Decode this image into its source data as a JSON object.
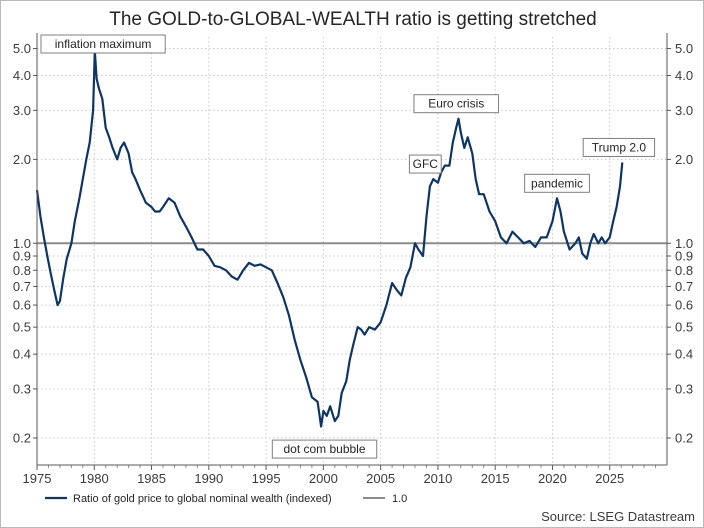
{
  "chart_data": {
    "type": "line",
    "title": "The GOLD-to-GLOBAL-WEALTH ratio is getting stretched",
    "xlabel": "",
    "ylabel": "",
    "y_scale": "log",
    "xlim": [
      1975,
      2030
    ],
    "ylim": [
      0.16,
      5.5
    ],
    "grid": true,
    "x_ticks": [
      1975,
      1980,
      1985,
      1990,
      1995,
      2000,
      2005,
      2010,
      2015,
      2020,
      2025
    ],
    "x_tick_labels": [
      "1975",
      "1980",
      "1985",
      "1990",
      "1995",
      "2000",
      "2005",
      "2010",
      "2015",
      "2020",
      "2025"
    ],
    "y_ticks": [
      0.2,
      0.3,
      0.4,
      0.5,
      0.6,
      0.7,
      0.8,
      0.9,
      1.0,
      2.0,
      3.0,
      4.0,
      5.0
    ],
    "y_tick_labels": [
      "0.2",
      "0.3",
      "0.4",
      "0.5",
      "0.6",
      "0.7",
      "0.8",
      "0.9",
      "1.0",
      "2.0",
      "3.0",
      "4.0",
      "5.0"
    ],
    "legend_position": "bottom-left",
    "source": "Source: LSEG Datastream",
    "series": [
      {
        "name": "Ratio of gold price to global nominal wealth (indexed)",
        "color": "#0d3566",
        "x": [
          1975.0,
          1975.3,
          1975.6,
          1975.9,
          1976.2,
          1976.5,
          1976.8,
          1977.0,
          1977.3,
          1977.6,
          1978.0,
          1978.3,
          1978.7,
          1979.0,
          1979.3,
          1979.6,
          1979.9,
          1980.05,
          1980.2,
          1980.4,
          1980.7,
          1981.0,
          1981.3,
          1981.6,
          1982.0,
          1982.3,
          1982.6,
          1983.0,
          1983.3,
          1983.6,
          1984.0,
          1984.5,
          1985.0,
          1985.3,
          1985.7,
          1986.0,
          1986.5,
          1987.0,
          1987.5,
          1988.0,
          1988.5,
          1989.0,
          1989.5,
          1990.0,
          1990.5,
          1991.0,
          1991.5,
          1992.0,
          1992.5,
          1993.0,
          1993.5,
          1994.0,
          1994.5,
          1995.0,
          1995.5,
          1996.0,
          1996.5,
          1997.0,
          1997.5,
          1998.0,
          1998.5,
          1999.0,
          1999.5,
          1999.8,
          2000.0,
          2000.3,
          2000.6,
          2001.0,
          2001.3,
          2001.6,
          2002.0,
          2002.3,
          2002.6,
          2003.0,
          2003.3,
          2003.6,
          2004.0,
          2004.5,
          2005.0,
          2005.5,
          2006.0,
          2006.4,
          2006.8,
          2007.2,
          2007.6,
          2008.0,
          2008.3,
          2008.7,
          2009.0,
          2009.3,
          2009.6,
          2010.0,
          2010.3,
          2010.6,
          2011.0,
          2011.3,
          2011.6,
          2011.8,
          2012.0,
          2012.3,
          2012.6,
          2013.0,
          2013.3,
          2013.6,
          2014.0,
          2014.5,
          2015.0,
          2015.5,
          2016.0,
          2016.5,
          2017.0,
          2017.5,
          2018.0,
          2018.5,
          2019.0,
          2019.5,
          2020.0,
          2020.4,
          2020.7,
          2021.0,
          2021.5,
          2022.0,
          2022.3,
          2022.6,
          2023.0,
          2023.3,
          2023.6,
          2024.0,
          2024.3,
          2024.6,
          2025.0,
          2025.3,
          2025.6,
          2025.9,
          2026.1
        ],
        "values": [
          1.55,
          1.25,
          1.05,
          0.9,
          0.78,
          0.68,
          0.6,
          0.62,
          0.75,
          0.88,
          1.0,
          1.2,
          1.45,
          1.7,
          2.0,
          2.3,
          3.0,
          4.9,
          3.9,
          3.6,
          3.3,
          2.6,
          2.4,
          2.2,
          2.0,
          2.2,
          2.3,
          2.1,
          1.8,
          1.7,
          1.55,
          1.4,
          1.35,
          1.3,
          1.3,
          1.35,
          1.45,
          1.4,
          1.25,
          1.15,
          1.05,
          0.95,
          0.95,
          0.9,
          0.83,
          0.82,
          0.8,
          0.76,
          0.74,
          0.8,
          0.85,
          0.83,
          0.84,
          0.82,
          0.8,
          0.72,
          0.64,
          0.55,
          0.45,
          0.38,
          0.33,
          0.28,
          0.27,
          0.22,
          0.25,
          0.24,
          0.26,
          0.23,
          0.24,
          0.29,
          0.32,
          0.38,
          0.43,
          0.5,
          0.49,
          0.47,
          0.5,
          0.49,
          0.52,
          0.6,
          0.72,
          0.68,
          0.65,
          0.75,
          0.82,
          1.0,
          0.95,
          0.9,
          1.25,
          1.6,
          1.7,
          1.65,
          1.8,
          1.9,
          1.9,
          2.3,
          2.6,
          2.8,
          2.5,
          2.2,
          2.4,
          2.1,
          1.7,
          1.5,
          1.5,
          1.3,
          1.2,
          1.05,
          1.0,
          1.1,
          1.05,
          1.0,
          1.02,
          0.97,
          1.05,
          1.05,
          1.2,
          1.45,
          1.3,
          1.1,
          0.95,
          1.0,
          1.05,
          0.92,
          0.88,
          1.0,
          1.08,
          1.0,
          1.05,
          1.0,
          1.05,
          1.2,
          1.35,
          1.6,
          1.95
        ]
      },
      {
        "name": "1.0",
        "color": "#8c8c8c",
        "x": [
          1975,
          2030
        ],
        "values": [
          1.0,
          1.0
        ]
      }
    ],
    "annotations": [
      {
        "text": "inflation maximum",
        "x": 1980.0,
        "y": 4.9
      },
      {
        "text": "dot com bubble",
        "x": 2000.1,
        "y": 0.21
      },
      {
        "text": "GFC",
        "x": 2008.9,
        "y": 1.7
      },
      {
        "text": "Euro crisis",
        "x": 2011.6,
        "y": 2.8
      },
      {
        "text": "pandemic",
        "x": 2020.4,
        "y": 1.45
      },
      {
        "text": "Trump 2.0",
        "x": 2025.8,
        "y": 1.95
      }
    ]
  }
}
